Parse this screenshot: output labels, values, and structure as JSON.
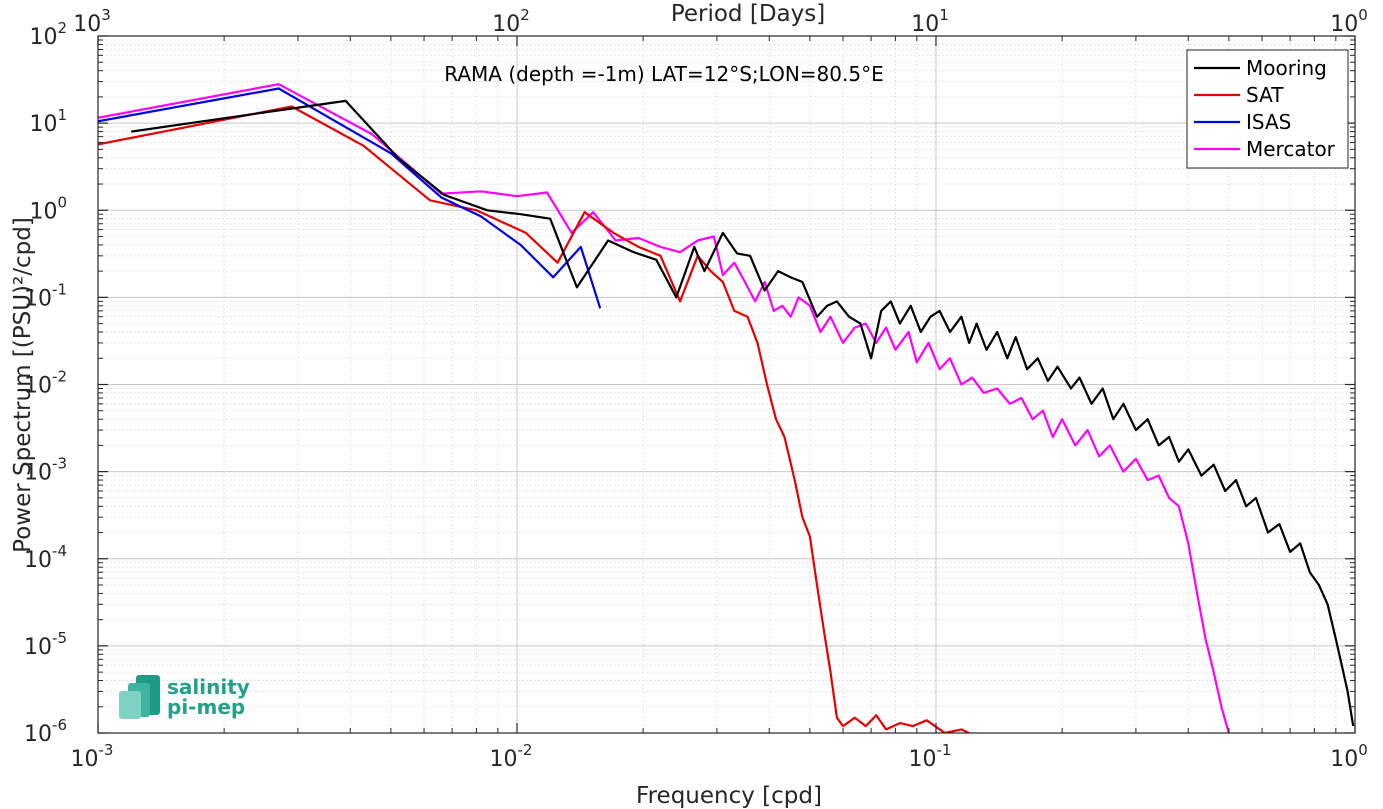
{
  "chart_data": {
    "type": "line",
    "title": "",
    "annotation": "RAMA (depth =-1m) LAT=12°S;LON=80.5°E",
    "xlabel": "Frequency [cpd]",
    "ylabel": "Power Spectrum [(PSU)²/cpd]",
    "top_xlabel": "Period [Days]",
    "x_scale": "log",
    "y_scale": "log",
    "xlim": [
      0.001,
      1
    ],
    "ylim": [
      1e-06,
      100
    ],
    "grid": true,
    "legend_position": "top-right",
    "x_ticks": [
      {
        "value": 0.001,
        "base": "10",
        "exp": "-3"
      },
      {
        "value": 0.01,
        "base": "10",
        "exp": "-2"
      },
      {
        "value": 0.1,
        "base": "10",
        "exp": "-1"
      },
      {
        "value": 1,
        "base": "10",
        "exp": "0"
      }
    ],
    "top_ticks": [
      {
        "value": 0.001,
        "base": "10",
        "exp": "3"
      },
      {
        "value": 0.01,
        "base": "10",
        "exp": "2"
      },
      {
        "value": 0.1,
        "base": "10",
        "exp": "1"
      },
      {
        "value": 1,
        "base": "10",
        "exp": "0"
      }
    ],
    "y_ticks": [
      {
        "value": 100,
        "base": "10",
        "exp": "2"
      },
      {
        "value": 10,
        "base": "10",
        "exp": "1"
      },
      {
        "value": 1,
        "base": "10",
        "exp": "0"
      },
      {
        "value": 0.1,
        "base": "10",
        "exp": "-1"
      },
      {
        "value": 0.01,
        "base": "10",
        "exp": "-2"
      },
      {
        "value": 0.001,
        "base": "10",
        "exp": "-3"
      },
      {
        "value": 0.0001,
        "base": "10",
        "exp": "-4"
      },
      {
        "value": 1e-05,
        "base": "10",
        "exp": "-5"
      },
      {
        "value": 1e-06,
        "base": "10",
        "exp": "-6"
      }
    ],
    "series": [
      {
        "name": "Mooring",
        "color": "#000000",
        "points": [
          [
            0.0012,
            8
          ],
          [
            0.0027,
            14
          ],
          [
            0.0039,
            18
          ],
          [
            0.0052,
            4
          ],
          [
            0.0067,
            1.5
          ],
          [
            0.0085,
            1.0
          ],
          [
            0.0102,
            0.9
          ],
          [
            0.012,
            0.8
          ],
          [
            0.0139,
            0.13
          ],
          [
            0.0165,
            0.45
          ],
          [
            0.019,
            0.33
          ],
          [
            0.0215,
            0.27
          ],
          [
            0.024,
            0.1
          ],
          [
            0.0265,
            0.38
          ],
          [
            0.028,
            0.2
          ],
          [
            0.031,
            0.55
          ],
          [
            0.0335,
            0.32
          ],
          [
            0.036,
            0.3
          ],
          [
            0.039,
            0.12
          ],
          [
            0.042,
            0.2
          ],
          [
            0.045,
            0.17
          ],
          [
            0.048,
            0.15
          ],
          [
            0.052,
            0.06
          ],
          [
            0.055,
            0.08
          ],
          [
            0.058,
            0.09
          ],
          [
            0.062,
            0.06
          ],
          [
            0.066,
            0.05
          ],
          [
            0.07,
            0.02
          ],
          [
            0.074,
            0.07
          ],
          [
            0.078,
            0.09
          ],
          [
            0.082,
            0.05
          ],
          [
            0.087,
            0.08
          ],
          [
            0.092,
            0.04
          ],
          [
            0.097,
            0.06
          ],
          [
            0.102,
            0.07
          ],
          [
            0.108,
            0.04
          ],
          [
            0.115,
            0.06
          ],
          [
            0.12,
            0.03
          ],
          [
            0.125,
            0.05
          ],
          [
            0.132,
            0.025
          ],
          [
            0.14,
            0.04
          ],
          [
            0.148,
            0.02
          ],
          [
            0.155,
            0.035
          ],
          [
            0.165,
            0.015
          ],
          [
            0.175,
            0.02
          ],
          [
            0.185,
            0.011
          ],
          [
            0.195,
            0.016
          ],
          [
            0.21,
            0.009
          ],
          [
            0.22,
            0.012
          ],
          [
            0.235,
            0.006
          ],
          [
            0.25,
            0.009
          ],
          [
            0.265,
            0.004
          ],
          [
            0.28,
            0.006
          ],
          [
            0.3,
            0.003
          ],
          [
            0.32,
            0.004
          ],
          [
            0.34,
            0.002
          ],
          [
            0.36,
            0.0025
          ],
          [
            0.38,
            0.0013
          ],
          [
            0.4,
            0.0018
          ],
          [
            0.43,
            0.0009
          ],
          [
            0.46,
            0.0012
          ],
          [
            0.49,
            0.0006
          ],
          [
            0.52,
            0.0008
          ],
          [
            0.55,
            0.0004
          ],
          [
            0.58,
            0.0005
          ],
          [
            0.62,
            0.0002
          ],
          [
            0.66,
            0.00025
          ],
          [
            0.7,
            0.00012
          ],
          [
            0.74,
            0.00015
          ],
          [
            0.78,
            7e-05
          ],
          [
            0.82,
            5e-05
          ],
          [
            0.86,
            3e-05
          ],
          [
            0.9,
            1.2e-05
          ],
          [
            0.93,
            6e-06
          ],
          [
            0.96,
            3e-06
          ],
          [
            0.99,
            1.2e-06
          ]
        ]
      },
      {
        "name": "SAT",
        "color": "#e60000",
        "points": [
          [
            0.001,
            5.7
          ],
          [
            0.0029,
            15.5
          ],
          [
            0.0043,
            5.5
          ],
          [
            0.0062,
            1.3
          ],
          [
            0.008,
            1.0
          ],
          [
            0.0105,
            0.55
          ],
          [
            0.0125,
            0.25
          ],
          [
            0.0145,
            0.95
          ],
          [
            0.017,
            0.55
          ],
          [
            0.0195,
            0.38
          ],
          [
            0.022,
            0.3
          ],
          [
            0.0245,
            0.09
          ],
          [
            0.027,
            0.3
          ],
          [
            0.029,
            0.2
          ],
          [
            0.031,
            0.15
          ],
          [
            0.033,
            0.07
          ],
          [
            0.0355,
            0.06
          ],
          [
            0.0375,
            0.03
          ],
          [
            0.0395,
            0.01
          ],
          [
            0.0415,
            0.004
          ],
          [
            0.0435,
            0.0025
          ],
          [
            0.046,
            0.0008
          ],
          [
            0.048,
            0.0003
          ],
          [
            0.05,
            0.00018
          ],
          [
            0.052,
            5e-05
          ],
          [
            0.054,
            1.5e-05
          ],
          [
            0.056,
            5e-06
          ],
          [
            0.058,
            1.5e-06
          ],
          [
            0.06,
            1.2e-06
          ],
          [
            0.064,
            1.5e-06
          ],
          [
            0.068,
            1.2e-06
          ],
          [
            0.072,
            1.6e-06
          ],
          [
            0.076,
            1.1e-06
          ],
          [
            0.082,
            1.3e-06
          ],
          [
            0.088,
            1.2e-06
          ],
          [
            0.095,
            1.4e-06
          ],
          [
            0.105,
            1e-06
          ],
          [
            0.115,
            1.1e-06
          ],
          [
            0.125,
            9e-07
          ]
        ]
      },
      {
        "name": "ISAS",
        "color": "#0000e6",
        "points": [
          [
            0.001,
            10.5
          ],
          [
            0.0027,
            25
          ],
          [
            0.005,
            4.5
          ],
          [
            0.0066,
            1.4
          ],
          [
            0.0082,
            0.85
          ],
          [
            0.0102,
            0.4
          ],
          [
            0.0122,
            0.17
          ],
          [
            0.0142,
            0.38
          ],
          [
            0.0158,
            0.075
          ]
        ]
      },
      {
        "name": "Mercator",
        "color": "#ff00ff",
        "points": [
          [
            0.001,
            11.5
          ],
          [
            0.0027,
            28
          ],
          [
            0.0045,
            7.5
          ],
          [
            0.0066,
            1.55
          ],
          [
            0.0082,
            1.65
          ],
          [
            0.01,
            1.45
          ],
          [
            0.0118,
            1.6
          ],
          [
            0.0135,
            0.55
          ],
          [
            0.0152,
            0.95
          ],
          [
            0.0172,
            0.45
          ],
          [
            0.0195,
            0.48
          ],
          [
            0.022,
            0.38
          ],
          [
            0.0245,
            0.33
          ],
          [
            0.027,
            0.45
          ],
          [
            0.0295,
            0.5
          ],
          [
            0.031,
            0.18
          ],
          [
            0.033,
            0.25
          ],
          [
            0.035,
            0.15
          ],
          [
            0.037,
            0.09
          ],
          [
            0.039,
            0.15
          ],
          [
            0.041,
            0.07
          ],
          [
            0.043,
            0.08
          ],
          [
            0.045,
            0.06
          ],
          [
            0.047,
            0.1
          ],
          [
            0.05,
            0.08
          ],
          [
            0.053,
            0.04
          ],
          [
            0.056,
            0.06
          ],
          [
            0.06,
            0.03
          ],
          [
            0.064,
            0.045
          ],
          [
            0.068,
            0.05
          ],
          [
            0.072,
            0.03
          ],
          [
            0.076,
            0.045
          ],
          [
            0.08,
            0.025
          ],
          [
            0.086,
            0.04
          ],
          [
            0.09,
            0.018
          ],
          [
            0.096,
            0.03
          ],
          [
            0.102,
            0.015
          ],
          [
            0.108,
            0.02
          ],
          [
            0.115,
            0.01
          ],
          [
            0.122,
            0.012
          ],
          [
            0.13,
            0.008
          ],
          [
            0.14,
            0.009
          ],
          [
            0.15,
            0.006
          ],
          [
            0.16,
            0.007
          ],
          [
            0.17,
            0.004
          ],
          [
            0.18,
            0.005
          ],
          [
            0.19,
            0.0025
          ],
          [
            0.2,
            0.004
          ],
          [
            0.215,
            0.002
          ],
          [
            0.23,
            0.003
          ],
          [
            0.245,
            0.0015
          ],
          [
            0.26,
            0.002
          ],
          [
            0.28,
            0.001
          ],
          [
            0.3,
            0.0014
          ],
          [
            0.32,
            0.0008
          ],
          [
            0.34,
            0.0009
          ],
          [
            0.36,
            0.0005
          ],
          [
            0.38,
            0.0004
          ],
          [
            0.4,
            0.00015
          ],
          [
            0.42,
            4e-05
          ],
          [
            0.44,
            1.2e-05
          ],
          [
            0.46,
            5e-06
          ],
          [
            0.48,
            2e-06
          ],
          [
            0.5,
            1e-06
          ]
        ]
      }
    ]
  },
  "logo": {
    "line1": "salinity",
    "line2": "pi-mep"
  }
}
